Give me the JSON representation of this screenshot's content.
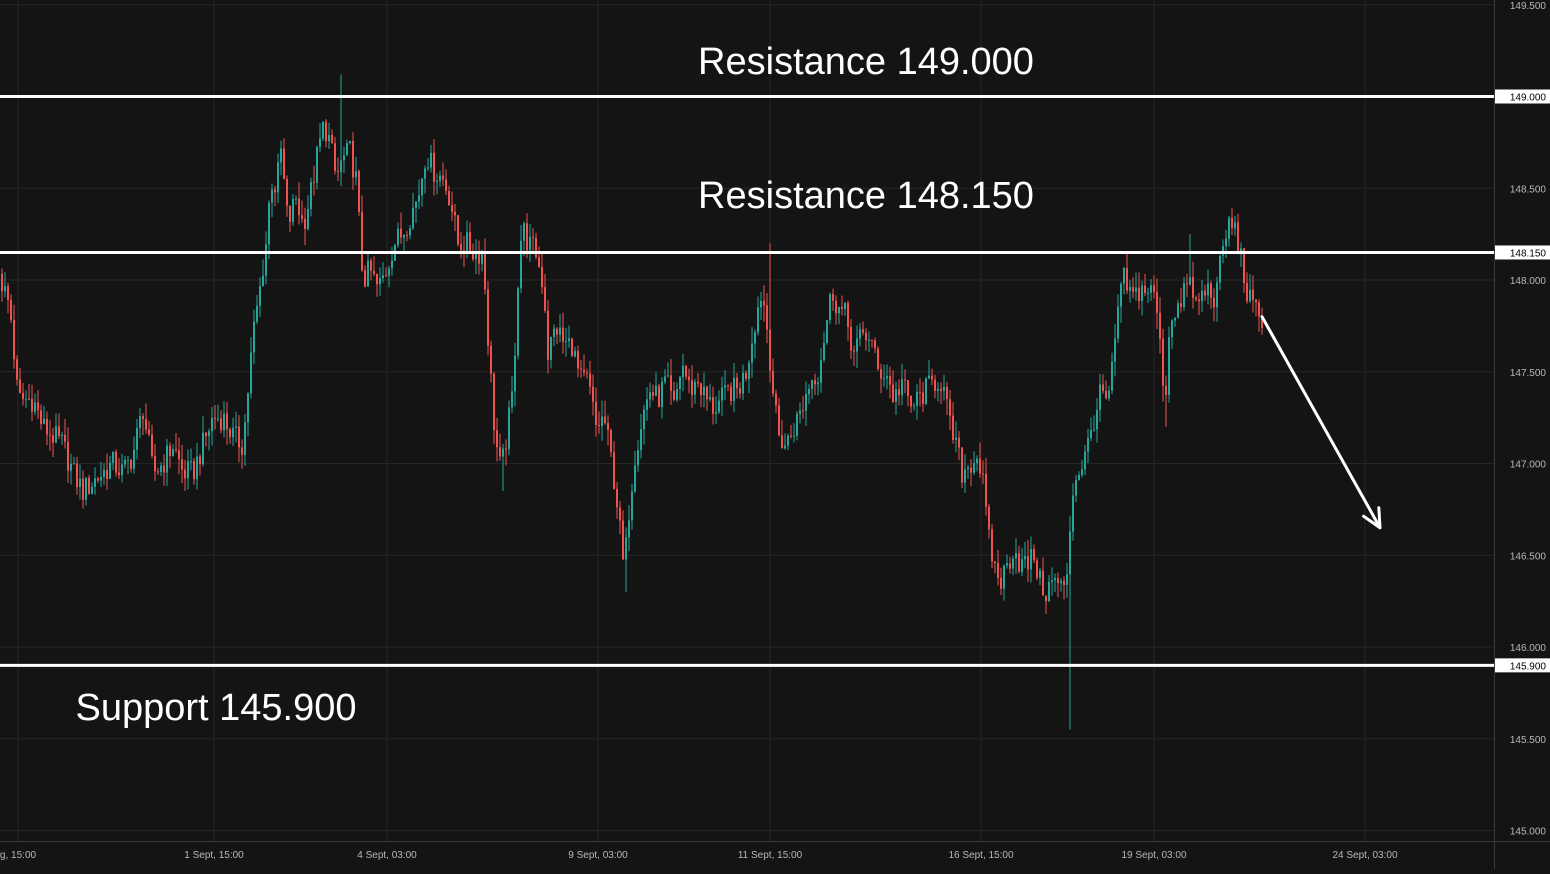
{
  "chart_data": {
    "type": "candlestick",
    "y_axis": {
      "range": [
        145.0,
        149.5
      ],
      "ticks": [
        "145.000",
        "145.500",
        "146.000",
        "146.500",
        "147.000",
        "147.500",
        "148.000",
        "148.500",
        "149.000",
        "149.500"
      ]
    },
    "x_axis": {
      "ticks": [
        "g, 15:00",
        "1 Sept, 15:00",
        "4 Sept, 03:00",
        "9 Sept, 03:00",
        "11 Sept, 15:00",
        "16 Sept, 15:00",
        "19 Sept, 03:00",
        "24 Sept, 03:00"
      ]
    },
    "levels": [
      {
        "name": "resistance-1",
        "value": 149.0,
        "tag": "149.000",
        "label": "Resistance 149.000"
      },
      {
        "name": "resistance-2",
        "value": 148.15,
        "tag": "148.150",
        "label": "Resistance 148.150"
      },
      {
        "name": "support",
        "value": 145.9,
        "tag": "145.900",
        "label": "Support 145.900"
      }
    ],
    "price_path": [
      [
        0,
        148.05
      ],
      [
        12,
        147.85
      ],
      [
        20,
        147.35
      ],
      [
        35,
        147.35
      ],
      [
        45,
        147.2
      ],
      [
        55,
        147.15
      ],
      [
        65,
        147.1
      ],
      [
        75,
        146.95
      ],
      [
        85,
        146.85
      ],
      [
        95,
        146.9
      ],
      [
        105,
        146.95
      ],
      [
        115,
        147.0
      ],
      [
        125,
        146.95
      ],
      [
        135,
        147.05
      ],
      [
        145,
        147.3
      ],
      [
        155,
        146.95
      ],
      [
        165,
        147.0
      ],
      [
        175,
        147.1
      ],
      [
        185,
        146.95
      ],
      [
        195,
        146.95
      ],
      [
        205,
        147.1
      ],
      [
        215,
        147.25
      ],
      [
        225,
        147.25
      ],
      [
        235,
        147.15
      ],
      [
        245,
        147.1
      ],
      [
        255,
        147.7
      ],
      [
        262,
        147.95
      ],
      [
        268,
        148.2
      ],
      [
        273,
        148.55
      ],
      [
        278,
        148.5
      ],
      [
        283,
        148.7
      ],
      [
        290,
        148.3
      ],
      [
        298,
        148.45
      ],
      [
        305,
        148.3
      ],
      [
        312,
        148.45
      ],
      [
        320,
        148.7
      ],
      [
        326,
        148.85
      ],
      [
        332,
        148.75
      ],
      [
        338,
        148.55
      ],
      [
        344,
        148.65
      ],
      [
        352,
        148.7
      ],
      [
        358,
        148.55
      ],
      [
        365,
        148.0
      ],
      [
        372,
        148.05
      ],
      [
        380,
        147.95
      ],
      [
        388,
        148.05
      ],
      [
        396,
        148.2
      ],
      [
        404,
        148.25
      ],
      [
        412,
        148.35
      ],
      [
        420,
        148.45
      ],
      [
        428,
        148.7
      ],
      [
        435,
        148.6
      ],
      [
        445,
        148.55
      ],
      [
        452,
        148.45
      ],
      [
        460,
        148.2
      ],
      [
        468,
        148.2
      ],
      [
        476,
        148.15
      ],
      [
        485,
        148.15
      ],
      [
        491,
        147.6
      ],
      [
        497,
        147.15
      ],
      [
        503,
        146.95
      ],
      [
        510,
        147.2
      ],
      [
        515,
        147.4
      ],
      [
        520,
        148.0
      ],
      [
        524,
        148.3
      ],
      [
        530,
        148.2
      ],
      [
        538,
        148.15
      ],
      [
        546,
        147.95
      ],
      [
        550,
        147.6
      ],
      [
        558,
        147.75
      ],
      [
        566,
        147.65
      ],
      [
        574,
        147.65
      ],
      [
        582,
        147.45
      ],
      [
        590,
        147.45
      ],
      [
        598,
        147.2
      ],
      [
        606,
        147.25
      ],
      [
        614,
        147.0
      ],
      [
        620,
        146.75
      ],
      [
        626,
        146.4
      ],
      [
        631,
        146.75
      ],
      [
        637,
        147.05
      ],
      [
        644,
        147.25
      ],
      [
        652,
        147.4
      ],
      [
        660,
        147.35
      ],
      [
        668,
        147.45
      ],
      [
        676,
        147.3
      ],
      [
        684,
        147.55
      ],
      [
        692,
        147.4
      ],
      [
        700,
        147.45
      ],
      [
        708,
        147.35
      ],
      [
        716,
        147.3
      ],
      [
        724,
        147.35
      ],
      [
        732,
        147.4
      ],
      [
        740,
        147.4
      ],
      [
        748,
        147.5
      ],
      [
        756,
        147.75
      ],
      [
        764,
        147.95
      ],
      [
        770,
        147.7
      ],
      [
        774,
        147.45
      ],
      [
        780,
        147.15
      ],
      [
        788,
        147.1
      ],
      [
        796,
        147.2
      ],
      [
        804,
        147.3
      ],
      [
        812,
        147.45
      ],
      [
        820,
        147.5
      ],
      [
        828,
        147.75
      ],
      [
        834,
        147.95
      ],
      [
        840,
        147.85
      ],
      [
        848,
        147.8
      ],
      [
        856,
        147.6
      ],
      [
        864,
        147.7
      ],
      [
        872,
        147.7
      ],
      [
        880,
        147.5
      ],
      [
        888,
        147.5
      ],
      [
        896,
        147.35
      ],
      [
        904,
        147.45
      ],
      [
        912,
        147.3
      ],
      [
        920,
        147.35
      ],
      [
        928,
        147.4
      ],
      [
        936,
        147.45
      ],
      [
        944,
        147.45
      ],
      [
        952,
        147.2
      ],
      [
        958,
        147.1
      ],
      [
        964,
        146.95
      ],
      [
        972,
        147.0
      ],
      [
        980,
        147.05
      ],
      [
        986,
        146.85
      ],
      [
        990,
        146.6
      ],
      [
        996,
        146.45
      ],
      [
        1002,
        146.35
      ],
      [
        1010,
        146.45
      ],
      [
        1016,
        146.55
      ],
      [
        1022,
        146.45
      ],
      [
        1030,
        146.45
      ],
      [
        1036,
        146.5
      ],
      [
        1042,
        146.35
      ],
      [
        1048,
        146.3
      ],
      [
        1054,
        146.35
      ],
      [
        1060,
        146.35
      ],
      [
        1066,
        146.3
      ],
      [
        1070,
        146.45
      ],
      [
        1074,
        146.85
      ],
      [
        1080,
        146.95
      ],
      [
        1088,
        147.05
      ],
      [
        1096,
        147.25
      ],
      [
        1104,
        147.4
      ],
      [
        1110,
        147.3
      ],
      [
        1116,
        147.6
      ],
      [
        1120,
        147.85
      ],
      [
        1126,
        148.0
      ],
      [
        1134,
        147.9
      ],
      [
        1142,
        147.95
      ],
      [
        1150,
        147.95
      ],
      [
        1158,
        147.9
      ],
      [
        1164,
        147.5
      ],
      [
        1168,
        147.4
      ],
      [
        1172,
        147.8
      ],
      [
        1178,
        147.85
      ],
      [
        1184,
        147.85
      ],
      [
        1190,
        148.05
      ],
      [
        1196,
        147.85
      ],
      [
        1202,
        147.9
      ],
      [
        1210,
        147.95
      ],
      [
        1218,
        147.9
      ],
      [
        1224,
        148.15
      ],
      [
        1230,
        148.3
      ],
      [
        1236,
        148.3
      ],
      [
        1242,
        148.15
      ],
      [
        1248,
        147.95
      ],
      [
        1254,
        147.85
      ],
      [
        1262,
        147.8
      ]
    ],
    "wicks": [
      [
        340,
        149.12
      ],
      [
        1070,
        145.55
      ],
      [
        626,
        146.3
      ],
      [
        503,
        146.85
      ],
      [
        1166,
        147.2
      ],
      [
        770,
        148.2
      ],
      [
        1188,
        148.25
      ],
      [
        1234,
        148.35
      ]
    ],
    "forecast_arrow": {
      "from": [
        1262,
        147.8
      ],
      "to": [
        1380,
        146.65
      ]
    },
    "colors": {
      "background": "#141414",
      "up": "#26a69a",
      "down": "#ef5350",
      "lines": "#ffffff",
      "grid": "#262626",
      "axis_text": "#b8b8b8",
      "annotation": "#ffffff"
    }
  }
}
